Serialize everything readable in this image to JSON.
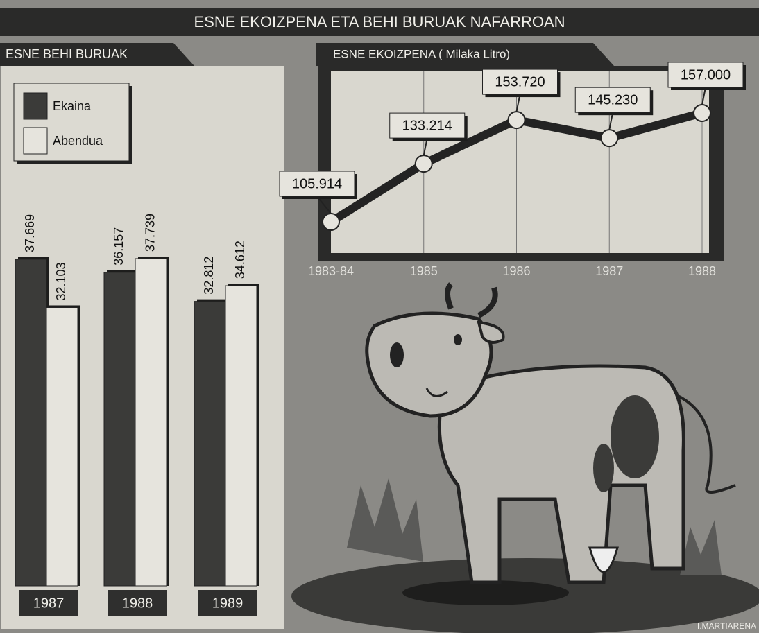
{
  "title": "ESNE EKOIZPENA ETA BEHI BURUAK NAFARROAN",
  "credit": "I.MARTIARENA",
  "chart_data": [
    {
      "type": "bar",
      "title": "ESNE BEHI BURUAK",
      "categories": [
        "1987",
        "1988",
        "1989"
      ],
      "series": [
        {
          "name": "Ekaina",
          "color": "#3b3b39",
          "values": [
            37669,
            36157,
            32812
          ],
          "value_labels": [
            "37.669",
            "36.157",
            "32.812"
          ]
        },
        {
          "name": "Abendua",
          "color": "#e6e4dd",
          "values": [
            32103,
            37739,
            34612
          ],
          "value_labels": [
            "32.103",
            "37.739",
            "34.612"
          ]
        }
      ]
    },
    {
      "type": "line",
      "title": "ESNE EKOIZPENA ( Milaka Litro)",
      "categories": [
        "1983-84",
        "1985",
        "1986",
        "1987",
        "1988"
      ],
      "series": [
        {
          "color": "#232323",
          "values": [
            105914,
            133214,
            153720,
            145230,
            157000
          ],
          "value_labels": [
            "105.914",
            "133.214",
            "153.720",
            "145.230",
            "157.000"
          ]
        }
      ]
    }
  ]
}
